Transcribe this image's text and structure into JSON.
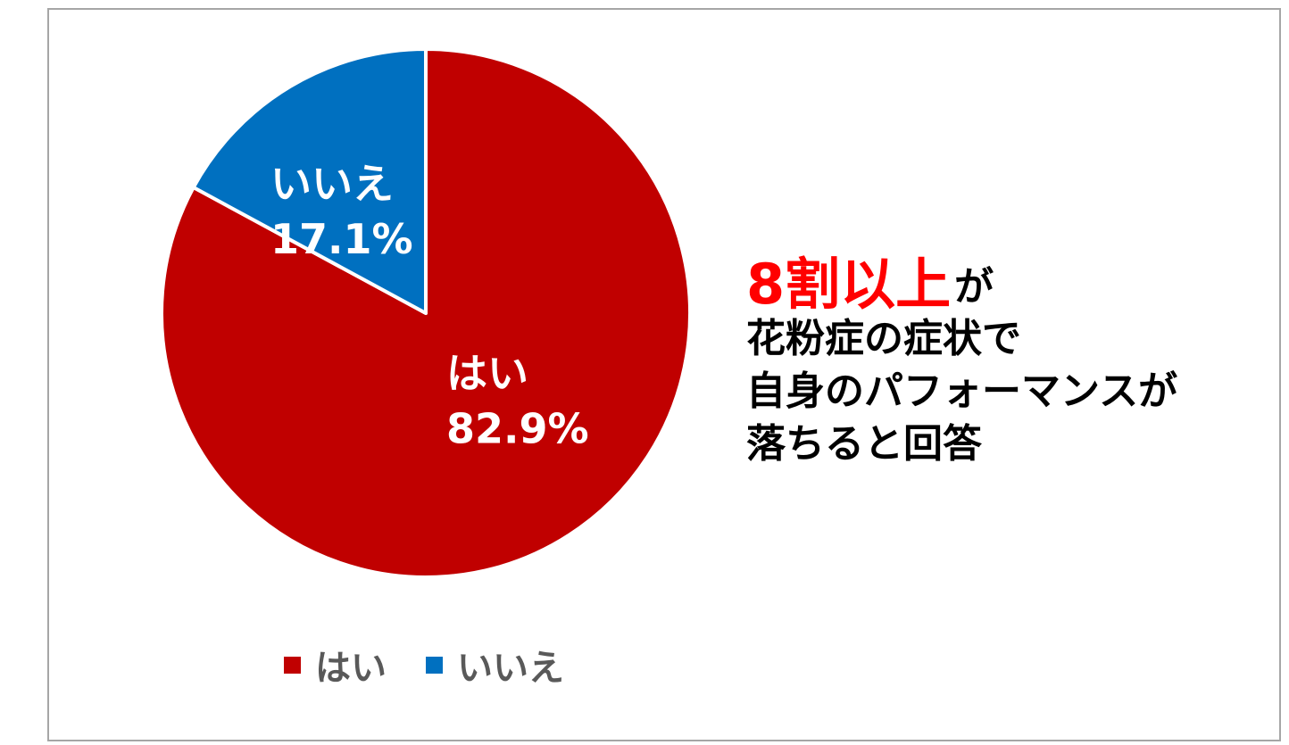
{
  "chart_data": {
    "type": "pie",
    "title": "",
    "slices": [
      {
        "label": "はい",
        "value": 82.9,
        "value_label": "82.9%",
        "color": "#c00000"
      },
      {
        "label": "いいえ",
        "value": 17.1,
        "value_label": "17.1%",
        "color": "#0070c0"
      }
    ],
    "start": "12 o'clock",
    "direction": "clockwise",
    "slice_border_color": "#ffffff",
    "legend": {
      "placement": "bottom",
      "entries": [
        {
          "label": "はい",
          "color": "#c00000"
        },
        {
          "label": "いいえ",
          "color": "#0070c0"
        }
      ]
    }
  },
  "annotation": {
    "highlight": "8割以上",
    "highlight_color": "#ff0000",
    "suffix": "が",
    "lines": [
      "花粉症の症状で",
      "自身のパフォーマンスが",
      "落ちると回答"
    ]
  }
}
